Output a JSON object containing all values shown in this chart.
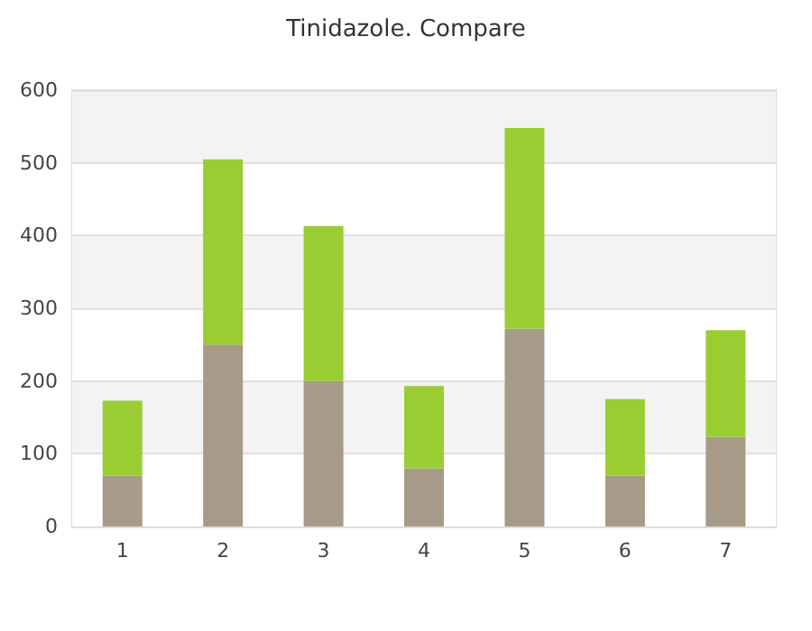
{
  "chart_data": {
    "type": "bar",
    "title": "Tinidazole. Compare",
    "categories": [
      "1",
      "2",
      "3",
      "4",
      "5",
      "6",
      "7"
    ],
    "stacked": true,
    "series": [
      {
        "color": "#a89a88",
        "values": [
          70,
          250,
          200,
          80,
          272,
          70,
          123
        ]
      },
      {
        "color": "#9acd32",
        "values": [
          103,
          255,
          213,
          113,
          276,
          105,
          147
        ]
      }
    ],
    "ylim": [
      0,
      600
    ],
    "yticks": [
      0,
      100,
      200,
      300,
      400,
      500,
      600
    ],
    "grid": true
  }
}
